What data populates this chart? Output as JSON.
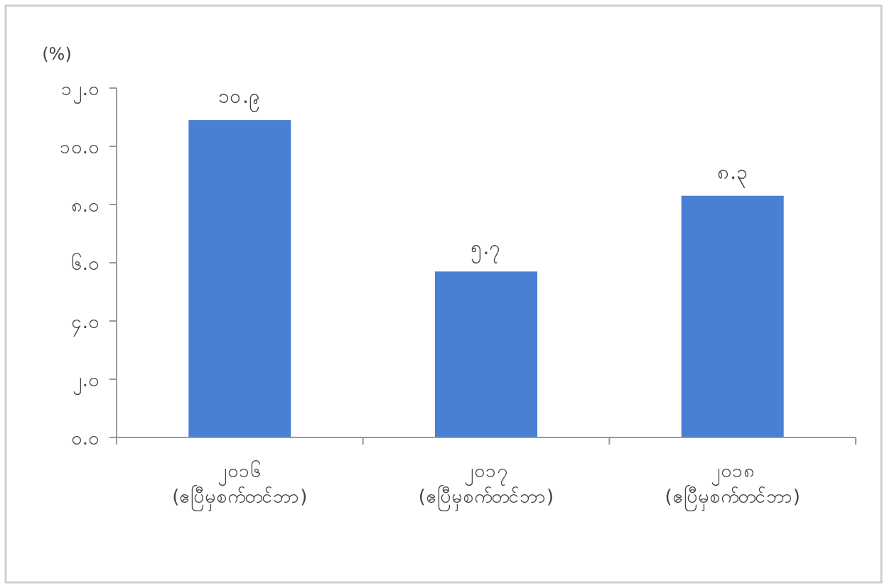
{
  "chart_data": {
    "type": "bar",
    "ylabel": "(%)",
    "categories": [
      "၂၀၁၆\n(ဧပြီမှစက်တင်ဘာ)",
      "၂၀၁၇\n(ဧပြီမှစက်တင်ဘာ)",
      "၂၀၁၈\n(ဧပြီမှစက်တင်ဘာ)"
    ],
    "values": [
      10.9,
      5.7,
      8.3
    ],
    "value_labels": [
      "၁၀.၉",
      "၅.၇",
      "၈.၃"
    ],
    "color": "#4a7fd4",
    "ylim": [
      0,
      12
    ],
    "yticks": [
      {
        "value": 0,
        "label": "၀.၀"
      },
      {
        "value": 2,
        "label": "၂.၀"
      },
      {
        "value": 4,
        "label": "၄.၀"
      },
      {
        "value": 6,
        "label": "၆.၀"
      },
      {
        "value": 8,
        "label": "၈.၀"
      },
      {
        "value": 10,
        "label": "၁၀.၀"
      },
      {
        "value": 12,
        "label": "၁၂.၀"
      }
    ],
    "grid": false
  }
}
